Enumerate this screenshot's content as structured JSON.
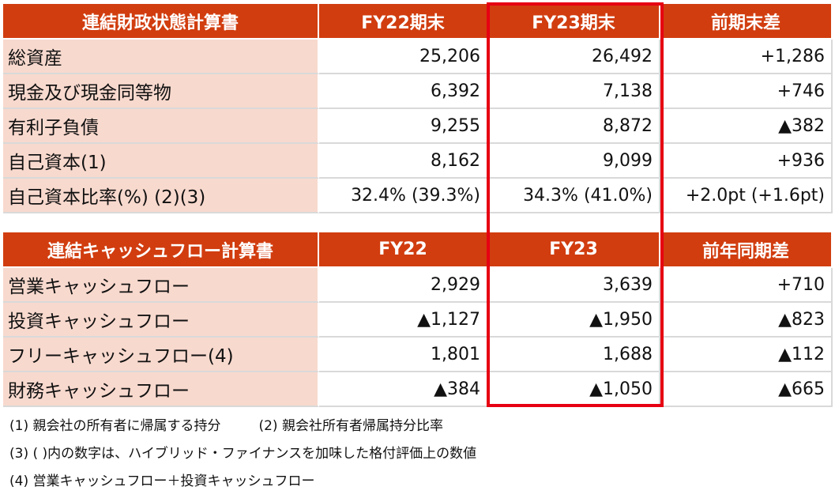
{
  "balance_sheet": {
    "headers": [
      "連結財政状態計算書",
      "FY22期末",
      "FY23期末",
      "前期末差"
    ],
    "rows": [
      {
        "label": "総資産",
        "fy22": "25,206",
        "fy23": "26,492",
        "diff": "+1,286"
      },
      {
        "label": "現金及び現金同等物",
        "fy22": "6,392",
        "fy23": "7,138",
        "diff": "+746"
      },
      {
        "label": "有利子負債",
        "fy22": "9,255",
        "fy23": "8,872",
        "diff": "▲382"
      },
      {
        "label": "自己資本(1)",
        "fy22": "8,162",
        "fy23": "9,099",
        "diff": "+936"
      },
      {
        "label": "自己資本比率(%) (2)(3)",
        "fy22": "32.4% (39.3%)",
        "fy23": "34.3% (41.0%)",
        "diff": "+2.0pt (+1.6pt)"
      }
    ]
  },
  "cash_flow": {
    "headers": [
      "連結キャッシュフロー計算書",
      "FY22",
      "FY23",
      "前年同期差"
    ],
    "rows": [
      {
        "label": "営業キャッシュフロー",
        "fy22": "2,929",
        "fy23": "3,639",
        "diff": "+710"
      },
      {
        "label": "投資キャッシュフロー",
        "fy22": "▲1,127",
        "fy23": "▲1,950",
        "diff": "▲823"
      },
      {
        "label": "フリーキャッシュフロー(4)",
        "fy22": "1,801",
        "fy23": "1,688",
        "diff": "▲112"
      },
      {
        "label": "財務キャッシュフロー",
        "fy22": "▲384",
        "fy23": "▲1,050",
        "diff": "▲665"
      }
    ]
  },
  "notes": {
    "n1": "(1) 親会社の所有者に帰属する持分",
    "n2": "(2) 親会社所有者帰属持分比率",
    "n3": "(3) ( )内の数字は、ハイブリッド・ファイナンスを加味した格付評価上の数値",
    "n4": "(4) 営業キャッシュフロー＋投資キャッシュフロー"
  },
  "colors": {
    "header_bg": "#d13d0f",
    "label_bg": "#f8d9ce",
    "highlight_border": "#e60012"
  }
}
